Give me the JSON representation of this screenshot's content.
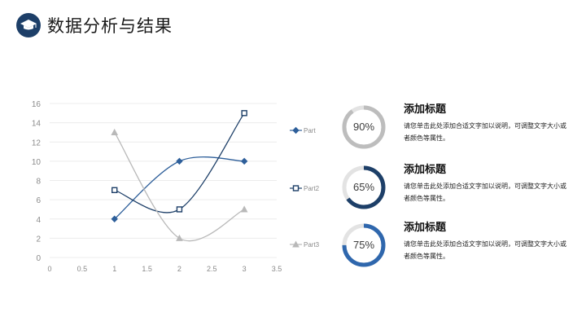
{
  "header": {
    "title": "数据分析与结果",
    "icon": "graduation-cap-icon"
  },
  "chart_data": {
    "type": "line",
    "smooth": true,
    "x": [
      1,
      2,
      3
    ],
    "series": [
      {
        "name": "Part",
        "values": [
          4,
          10,
          10
        ],
        "color": "#2e5f9a",
        "marker": "diamond"
      },
      {
        "name": "Part2",
        "values": [
          7,
          5,
          15
        ],
        "color": "#1d3f68",
        "marker": "square"
      },
      {
        "name": "Part3",
        "values": [
          13,
          2,
          5
        ],
        "color": "#b9b9b9",
        "marker": "triangle"
      }
    ],
    "xlim": [
      0,
      3.5
    ],
    "ylim": [
      0,
      16
    ],
    "xticks": [
      "0",
      "0.5",
      "1",
      "1.5",
      "2",
      "2.5",
      "3",
      "3.5"
    ],
    "yticks": [
      "0",
      "2",
      "4",
      "6",
      "8",
      "10",
      "12",
      "14",
      "16"
    ],
    "grid": true,
    "legend_position": "right"
  },
  "metrics": [
    {
      "percent": 90,
      "label": "90%",
      "color": "#bdbdbd",
      "title": "添加标题",
      "description": "请您单击此处添加合适文字加以说明，可调整文字大小或者颜色等属性。"
    },
    {
      "percent": 65,
      "label": "65%",
      "color": "#1d3f68",
      "title": "添加标题",
      "description": "请您单击此处添加合适文字加以说明，可调整文字大小或者颜色等属性。"
    },
    {
      "percent": 75,
      "label": "75%",
      "color": "#2f67ad",
      "title": "添加标题",
      "description": "请您单击此处添加合适文字加以说明，可调整文字大小或者颜色等属性。"
    }
  ]
}
